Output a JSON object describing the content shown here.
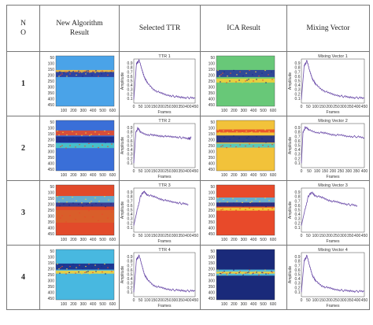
{
  "header": {
    "no": "N\nO",
    "new_algorithm": "New Algorithm\nResult",
    "selected_ttr": "Selected TTR",
    "ica_result": "ICA Result",
    "mixing_vector": "Mixing Vector"
  },
  "rows": [
    {
      "no": "1",
      "ttr_title": "TTR 1",
      "mix_title": "Mixing Vector 1"
    },
    {
      "no": "2",
      "ttr_title": "TTR 2",
      "mix_title": "Mixing Vector 2"
    },
    {
      "no": "3",
      "ttr_title": "TTR 3",
      "mix_title": "Mixing Vector 3"
    },
    {
      "no": "4",
      "ttr_title": "TTR 4",
      "mix_title": "Mixing Vector 4"
    }
  ],
  "image_axes": {
    "x_ticks": [
      "100",
      "200",
      "300",
      "400",
      "500",
      "600"
    ],
    "y_ticks": [
      "50",
      "100",
      "150",
      "200",
      "250",
      "300",
      "350",
      "400",
      "450"
    ]
  },
  "plot_axes": {
    "xlabel": "Frames",
    "ylabel": "Amplitude",
    "x_ticks": [
      "0",
      "50",
      "100",
      "150",
      "200",
      "250",
      "300",
      "350",
      "400",
      "450"
    ],
    "y_ticks": [
      "0.1",
      "0.2",
      "0.3",
      "0.4",
      "0.5",
      "0.6",
      "0.7",
      "0.8",
      "0.9"
    ]
  },
  "chart_data": [
    {
      "type": "line",
      "title": "TTR 1",
      "xlabel": "Frames",
      "ylabel": "Amplitude",
      "xlim": [
        0,
        450
      ],
      "ylim": [
        0,
        1
      ],
      "x": [
        0,
        20,
        40,
        60,
        80,
        100,
        150,
        200,
        250,
        300,
        350,
        400,
        450
      ],
      "y": [
        0.08,
        0.9,
        0.97,
        0.75,
        0.58,
        0.45,
        0.3,
        0.22,
        0.18,
        0.15,
        0.13,
        0.12,
        0.11
      ]
    },
    {
      "type": "line",
      "title": "TTR 2",
      "xlabel": "Frames",
      "ylabel": "Amplitude",
      "xlim": [
        0,
        450
      ],
      "ylim": [
        0,
        1
      ],
      "x": [
        0,
        15,
        30,
        50,
        100,
        150,
        200,
        250,
        300,
        350,
        400,
        420
      ],
      "y": [
        0.1,
        0.8,
        0.9,
        0.8,
        0.75,
        0.73,
        0.72,
        0.7,
        0.7,
        0.68,
        0.66,
        0.67
      ]
    },
    {
      "type": "line",
      "title": "TTR 3",
      "xlabel": "Frames",
      "ylabel": "Amplitude",
      "xlim": [
        0,
        450
      ],
      "ylim": [
        0,
        1
      ],
      "x": [
        0,
        25,
        50,
        75,
        100,
        150,
        200,
        250,
        300,
        350,
        400
      ],
      "y": [
        0.15,
        0.5,
        0.82,
        0.92,
        0.85,
        0.8,
        0.75,
        0.7,
        0.68,
        0.65,
        0.63
      ]
    },
    {
      "type": "line",
      "title": "TTR 4",
      "xlabel": "Frames",
      "ylabel": "Amplitude",
      "xlim": [
        0,
        450
      ],
      "ylim": [
        0,
        1
      ],
      "x": [
        0,
        20,
        40,
        60,
        80,
        100,
        150,
        200,
        250,
        300,
        350,
        400,
        450
      ],
      "y": [
        0.1,
        0.85,
        0.93,
        0.7,
        0.5,
        0.38,
        0.25,
        0.2,
        0.17,
        0.15,
        0.14,
        0.13,
        0.13
      ]
    },
    {
      "type": "line",
      "title": "Mixing Vector 1",
      "xlabel": "Frames",
      "ylabel": "Amplitude",
      "xlim": [
        0,
        450
      ],
      "ylim": [
        0,
        1
      ],
      "x": [
        0,
        20,
        40,
        60,
        80,
        100,
        150,
        200,
        250,
        300,
        350,
        400,
        450
      ],
      "y": [
        0.08,
        0.85,
        0.96,
        0.72,
        0.55,
        0.43,
        0.3,
        0.22,
        0.18,
        0.15,
        0.13,
        0.12,
        0.11
      ]
    },
    {
      "type": "line",
      "title": "Mixing Vector 2",
      "xlabel": "Frames",
      "ylabel": "Amplitude",
      "xlim": [
        0,
        400
      ],
      "ylim": [
        0,
        1
      ],
      "x": [
        0,
        10,
        25,
        50,
        100,
        150,
        200,
        250,
        300,
        350,
        400
      ],
      "y": [
        0.1,
        0.8,
        0.92,
        0.85,
        0.8,
        0.78,
        0.75,
        0.73,
        0.71,
        0.7,
        0.68
      ]
    },
    {
      "type": "line",
      "title": "Mixing Vector 3",
      "xlabel": "Frames",
      "ylabel": "Amplitude",
      "xlim": [
        0,
        450
      ],
      "ylim": [
        0,
        1
      ],
      "x": [
        0,
        25,
        50,
        75,
        100,
        150,
        200,
        250,
        300,
        350,
        400
      ],
      "y": [
        0.15,
        0.5,
        0.82,
        0.9,
        0.83,
        0.78,
        0.72,
        0.68,
        0.65,
        0.62,
        0.6
      ]
    },
    {
      "type": "line",
      "title": "Mixing Vector 4",
      "xlabel": "Frames",
      "ylabel": "Amplitude",
      "xlim": [
        0,
        450
      ],
      "ylim": [
        0,
        1
      ],
      "x": [
        0,
        20,
        40,
        60,
        80,
        100,
        150,
        200,
        250,
        300,
        350,
        400,
        450
      ],
      "y": [
        0.1,
        0.82,
        0.93,
        0.68,
        0.48,
        0.36,
        0.24,
        0.19,
        0.16,
        0.14,
        0.13,
        0.12,
        0.12
      ]
    }
  ],
  "heatmaps": {
    "new_algorithm": [
      {
        "bg": "#4aa3e8",
        "bands": [
          {
            "y": 0.3,
            "h": 0.12,
            "c": "#2a3a9a"
          },
          {
            "y": 0.28,
            "h": 0.04,
            "c": "#f2b53a"
          }
        ]
      },
      {
        "bg": "#3a6fd8",
        "bands": [
          {
            "y": 0.2,
            "h": 0.1,
            "c": "#e84a2a"
          },
          {
            "y": 0.32,
            "h": 0.12,
            "c": "#1a2a8a"
          },
          {
            "y": 0.45,
            "h": 0.1,
            "c": "#4ac8c8"
          }
        ]
      },
      {
        "bg": "#e24a2a",
        "bands": [
          {
            "y": 0.22,
            "h": 0.14,
            "c": "#5ab8e0"
          },
          {
            "y": 0.35,
            "h": 0.08,
            "c": "#2a3a9a"
          },
          {
            "y": 0.5,
            "h": 0.25,
            "c": "#d8602a"
          }
        ]
      },
      {
        "bg": "#48b8e0",
        "bands": [
          {
            "y": 0.28,
            "h": 0.12,
            "c": "#1a2a8a"
          },
          {
            "y": 0.42,
            "h": 0.06,
            "c": "#f2d03a"
          }
        ]
      }
    ],
    "ica_result": [
      {
        "bg": "#68c878",
        "bands": [
          {
            "y": 0.28,
            "h": 0.14,
            "c": "#2a3a9a"
          },
          {
            "y": 0.45,
            "h": 0.08,
            "c": "#f2d03a"
          }
        ]
      },
      {
        "bg": "#f2c23a",
        "bands": [
          {
            "y": 0.18,
            "h": 0.06,
            "c": "#e84a2a"
          },
          {
            "y": 0.3,
            "h": 0.14,
            "c": "#1a2a8a"
          },
          {
            "y": 0.46,
            "h": 0.08,
            "c": "#4ac8c8"
          }
        ]
      },
      {
        "bg": "#e84a2a",
        "bands": [
          {
            "y": 0.25,
            "h": 0.1,
            "c": "#5ab8e0"
          },
          {
            "y": 0.35,
            "h": 0.08,
            "c": "#1a2a8a"
          },
          {
            "y": 0.45,
            "h": 0.06,
            "c": "#f2d03a"
          }
        ]
      },
      {
        "bg": "#1a2a7a",
        "bands": [
          {
            "y": 0.4,
            "h": 0.12,
            "c": "#5ac8e0"
          },
          {
            "y": 0.44,
            "h": 0.04,
            "c": "#f2d03a"
          }
        ]
      }
    ]
  }
}
